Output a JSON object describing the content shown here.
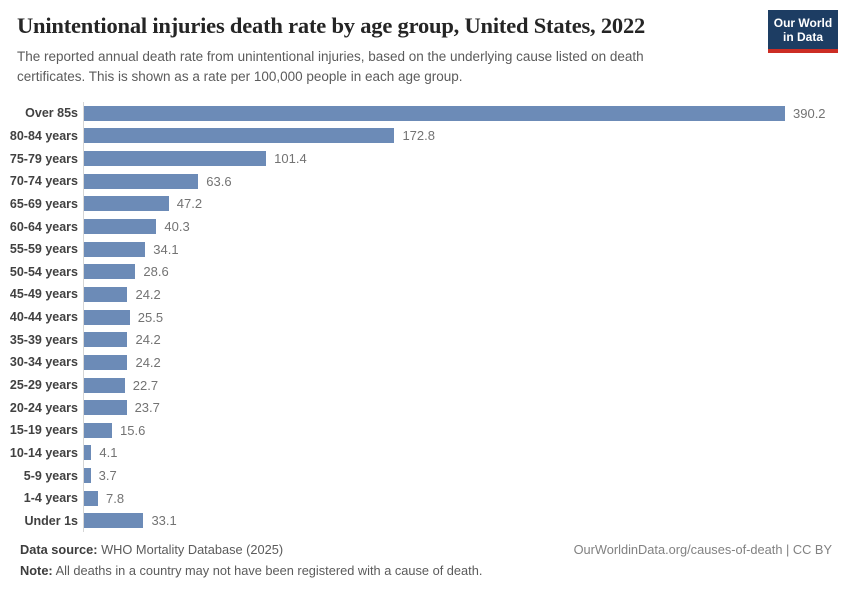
{
  "header": {
    "title": "Unintentional injuries death rate by age group, United States, 2022",
    "subtitle": "The reported annual death rate from unintentional injuries, based on the underlying cause listed on death certificates. This is shown as a rate per 100,000 people in each age group.",
    "logo": {
      "line1": "Our World",
      "line2": "in Data",
      "bg_color": "#1d3d63",
      "accent_color": "#cc2d24"
    }
  },
  "chart_data": {
    "type": "bar",
    "orientation": "horizontal",
    "title": "Unintentional injuries death rate by age group, United States, 2022",
    "xlabel": "",
    "ylabel": "",
    "xmax": 390.2,
    "grid": false,
    "legend": false,
    "bar_color": "#6c8bb7",
    "categories": [
      "Over 85s",
      "80-84 years",
      "75-79 years",
      "70-74 years",
      "65-69 years",
      "60-64 years",
      "55-59 years",
      "50-54 years",
      "45-49 years",
      "40-44 years",
      "35-39 years",
      "30-34 years",
      "25-29 years",
      "20-24 years",
      "15-19 years",
      "10-14 years",
      "5-9 years",
      "1-4 years",
      "Under 1s"
    ],
    "values": [
      390.2,
      172.8,
      101.4,
      63.6,
      47.2,
      40.3,
      34.1,
      28.6,
      24.2,
      25.5,
      24.2,
      24.2,
      22.7,
      23.7,
      15.6,
      4.1,
      3.7,
      7.8,
      33.1
    ]
  },
  "footer": {
    "source_label": "Data source:",
    "source_text": "WHO Mortality Database (2025)",
    "note_label": "Note:",
    "note_text": "All deaths in a country may not have been registered with a cause of death.",
    "credit": "OurWorldinData.org/causes-of-death | CC BY"
  }
}
